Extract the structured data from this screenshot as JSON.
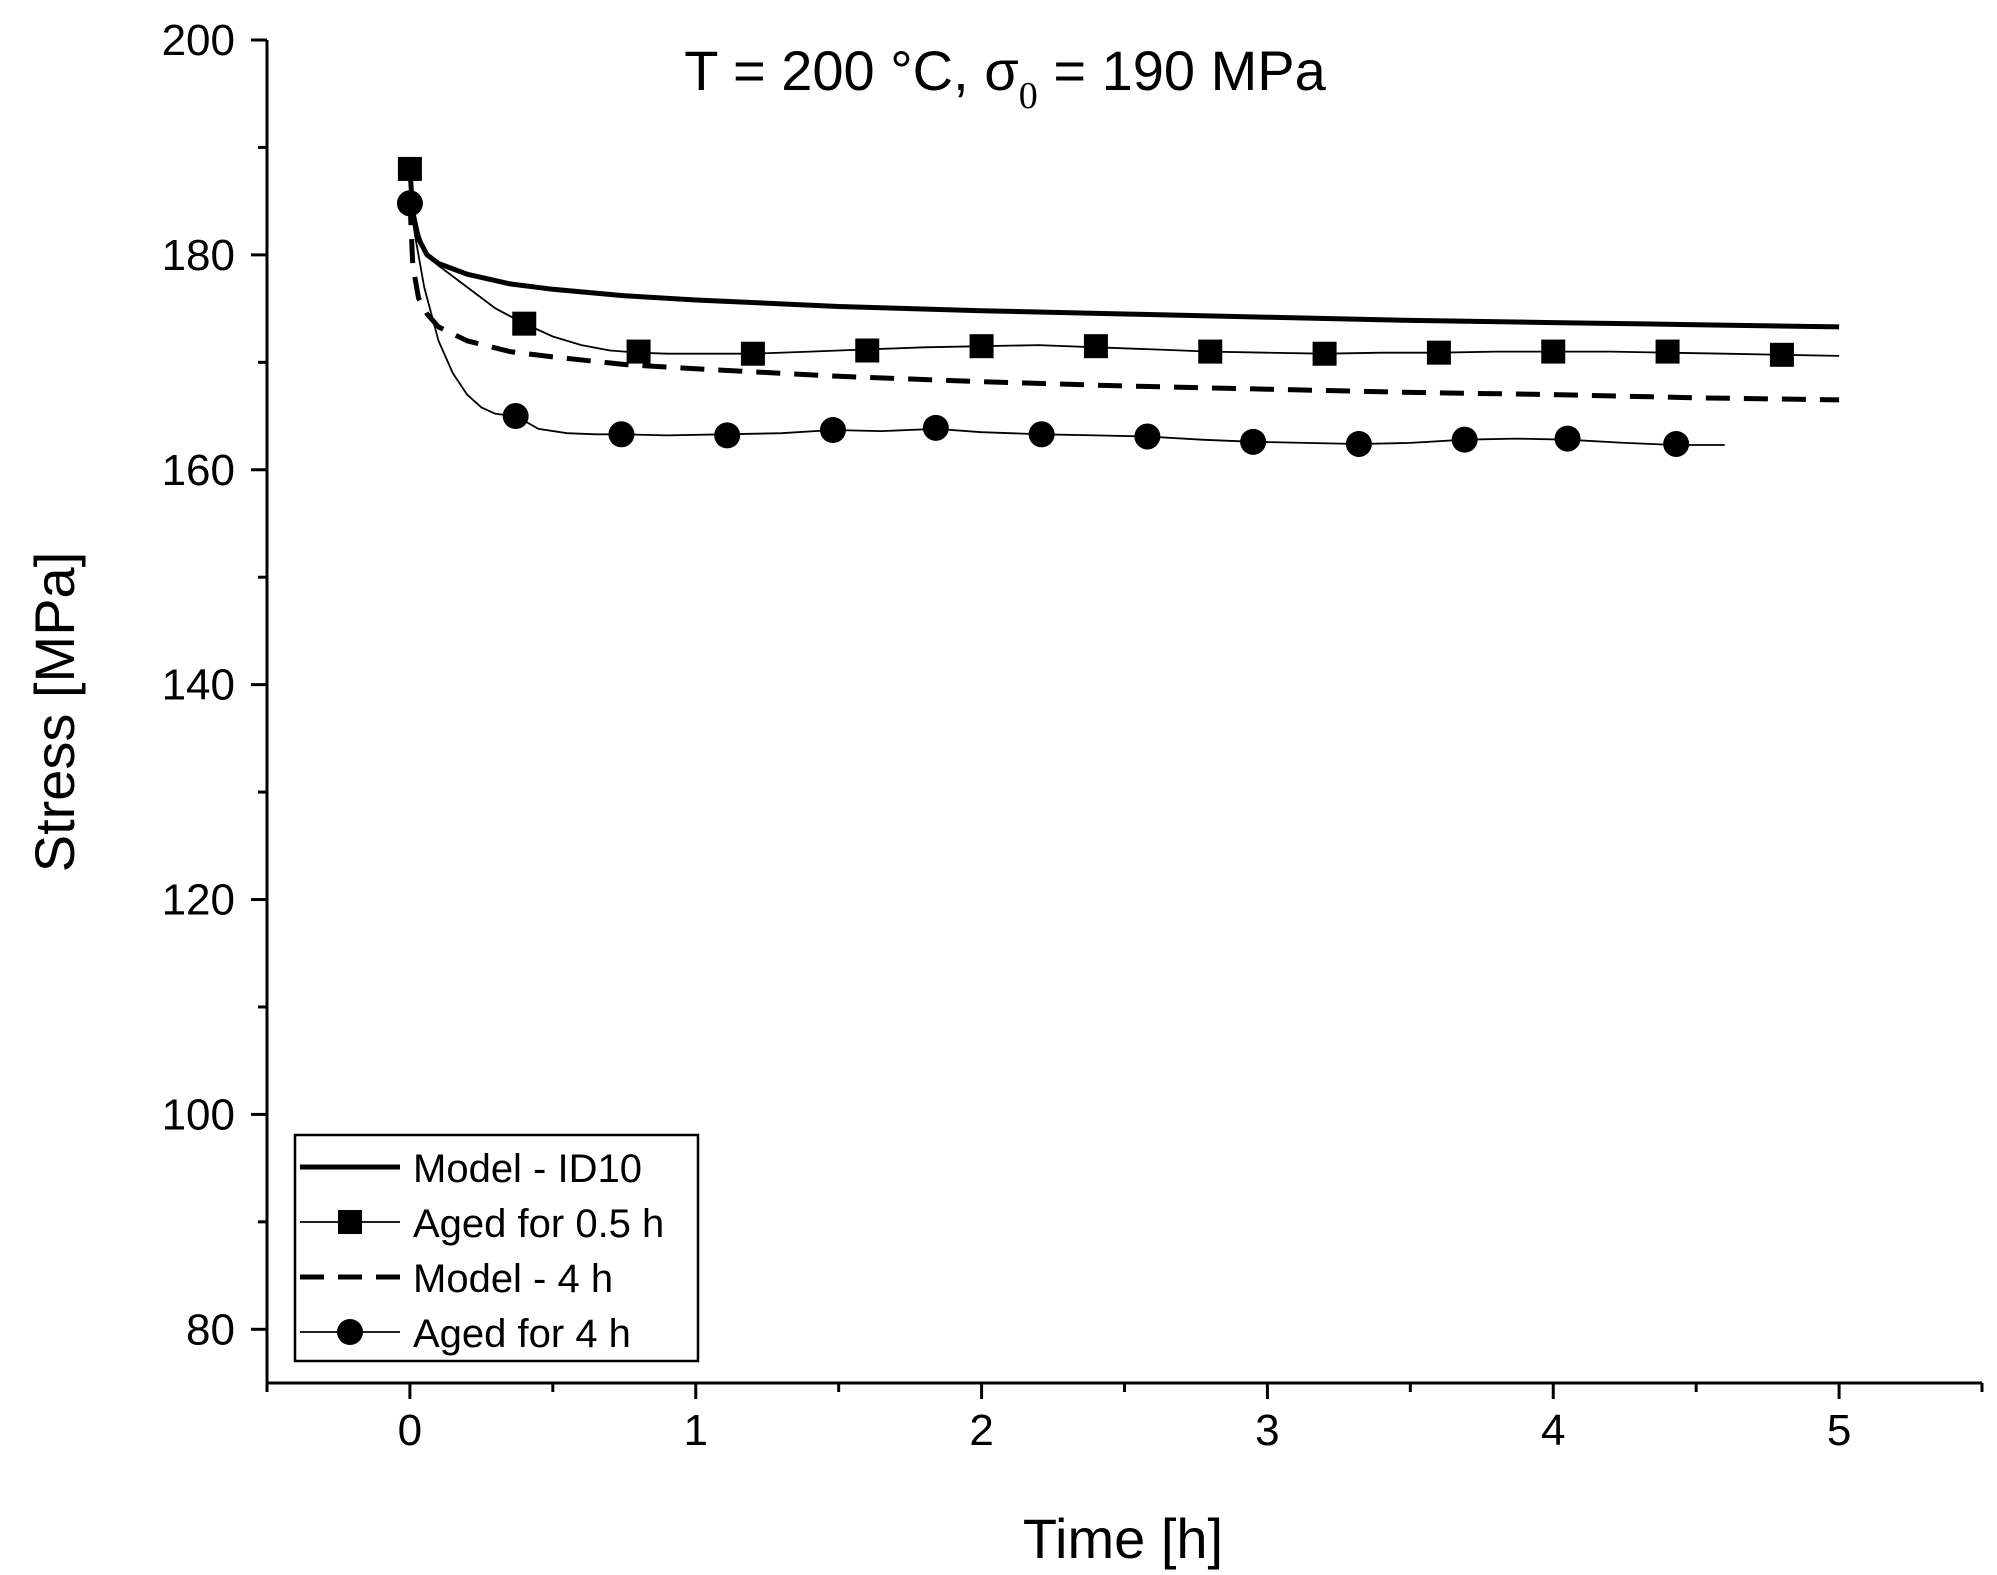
{
  "chart_data": {
    "type": "line",
    "title": "T = 200 °C, σ",
    "title_subscript": "0",
    "title_suffix": " = 190 MPa",
    "xlabel": "Time [h]",
    "ylabel": "Stress [MPa]",
    "xlim": [
      -0.5,
      5.5
    ],
    "ylim": [
      75,
      200
    ],
    "x_ticks": [
      0,
      1,
      2,
      3,
      4,
      5
    ],
    "x_tick_labels": [
      "0",
      "1",
      "2",
      "3",
      "4",
      "5"
    ],
    "y_ticks": [
      80,
      100,
      120,
      140,
      160,
      180,
      200
    ],
    "y_tick_labels": [
      "80",
      "100",
      "120",
      "140",
      "160",
      "180",
      "200"
    ],
    "legend_position": "bottom-left",
    "series": [
      {
        "name": "Model - ID10",
        "style": "thick-solid",
        "x": [
          0.0,
          0.01,
          0.03,
          0.06,
          0.1,
          0.2,
          0.35,
          0.5,
          0.75,
          1.0,
          1.5,
          2.0,
          2.5,
          3.0,
          3.5,
          4.0,
          4.5,
          5.0
        ],
        "y": [
          188.0,
          184.0,
          181.5,
          180.0,
          179.2,
          178.2,
          177.3,
          176.8,
          176.2,
          175.8,
          175.2,
          174.8,
          174.5,
          174.2,
          173.9,
          173.7,
          173.5,
          173.3
        ]
      },
      {
        "name": "Aged for 0.5 h",
        "style": "thin-line-square",
        "line_x": [
          0.0,
          0.02,
          0.05,
          0.1,
          0.2,
          0.3,
          0.4,
          0.5,
          0.6,
          0.7,
          0.8,
          0.9,
          1.0,
          1.2,
          1.4,
          1.6,
          1.8,
          2.0,
          2.2,
          2.4,
          2.6,
          2.8,
          3.0,
          3.2,
          3.4,
          3.6,
          3.8,
          4.0,
          4.2,
          4.4,
          4.6,
          4.8,
          5.0
        ],
        "line_y": [
          188.0,
          183.0,
          180.5,
          179.0,
          177.0,
          175.0,
          173.6,
          172.4,
          171.6,
          171.1,
          170.9,
          170.8,
          170.8,
          170.8,
          171.0,
          171.2,
          171.4,
          171.5,
          171.6,
          171.4,
          171.2,
          171.0,
          170.9,
          170.8,
          170.9,
          170.9,
          171.0,
          171.0,
          171.0,
          170.9,
          170.8,
          170.7,
          170.6
        ],
        "x": [
          0.0,
          0.4,
          0.8,
          1.2,
          1.6,
          2.0,
          2.4,
          2.8,
          3.2,
          3.6,
          4.0,
          4.4,
          4.8
        ],
        "y": [
          188.0,
          173.6,
          171.0,
          170.8,
          171.1,
          171.5,
          171.5,
          171.0,
          170.8,
          170.9,
          171.0,
          171.0,
          170.7
        ]
      },
      {
        "name": "Model - 4 h",
        "style": "dashed",
        "x": [
          0.0,
          0.01,
          0.03,
          0.06,
          0.1,
          0.2,
          0.35,
          0.5,
          0.75,
          1.0,
          1.5,
          2.0,
          2.5,
          3.0,
          3.5,
          4.0,
          4.5,
          5.0
        ],
        "y": [
          185.0,
          179.0,
          176.0,
          174.5,
          173.3,
          172.0,
          171.0,
          170.5,
          169.8,
          169.4,
          168.7,
          168.2,
          167.8,
          167.5,
          167.2,
          167.0,
          166.7,
          166.5
        ]
      },
      {
        "name": "Aged for 4 h",
        "style": "thin-line-circle",
        "line_x": [
          0.0,
          0.02,
          0.05,
          0.1,
          0.15,
          0.2,
          0.25,
          0.3,
          0.37,
          0.45,
          0.55,
          0.65,
          0.74,
          0.9,
          1.1,
          1.3,
          1.48,
          1.65,
          1.84,
          2.0,
          2.21,
          2.4,
          2.58,
          2.77,
          2.95,
          3.13,
          3.32,
          3.5,
          3.69,
          3.87,
          4.05,
          4.25,
          4.43,
          4.6
        ],
        "line_y": [
          185.0,
          181.5,
          177.0,
          172.0,
          169.0,
          167.0,
          165.8,
          165.2,
          165.0,
          163.8,
          163.4,
          163.3,
          163.3,
          163.2,
          163.3,
          163.4,
          163.7,
          163.6,
          163.8,
          163.5,
          163.3,
          163.2,
          163.1,
          162.8,
          162.6,
          162.5,
          162.4,
          162.5,
          162.8,
          162.9,
          162.8,
          162.5,
          162.3,
          162.3
        ],
        "x": [
          0.0,
          0.37,
          0.74,
          1.11,
          1.48,
          1.84,
          2.21,
          2.58,
          2.95,
          3.32,
          3.69,
          4.05,
          4.43
        ],
        "y": [
          184.8,
          165.0,
          163.3,
          163.2,
          163.7,
          163.9,
          163.3,
          163.1,
          162.6,
          162.4,
          162.8,
          162.9,
          162.4
        ]
      }
    ]
  }
}
